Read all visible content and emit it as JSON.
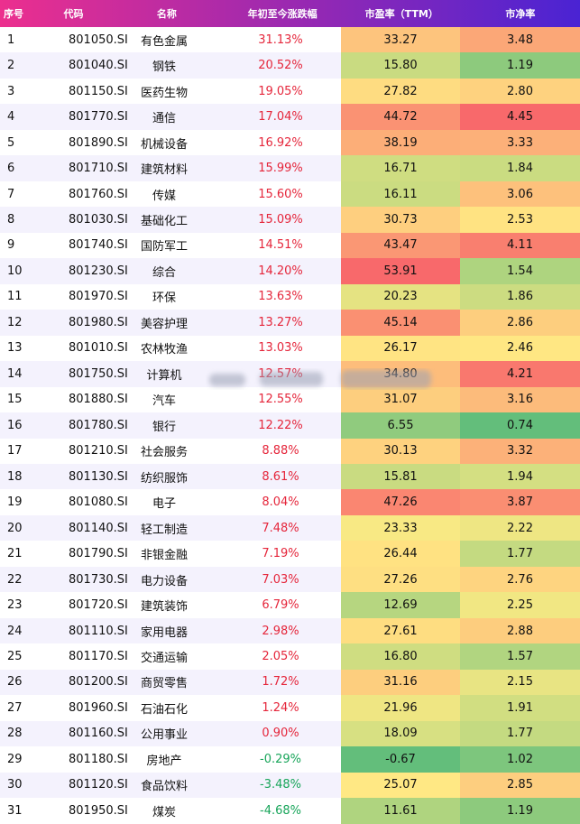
{
  "colors": {
    "header_start": "#ec2f8e",
    "header_end": "#4a23d3",
    "positive": "#e5263b",
    "negative": "#18a55a"
  },
  "headers": [
    "序号",
    "代码",
    "名称",
    "年初至今涨跌幅",
    "市盈率（TTM）",
    "市净率"
  ],
  "rows": [
    [
      "1",
      "801050.SI",
      "有色金属",
      "31.13%",
      "33.27",
      "3.48"
    ],
    [
      "2",
      "801040.SI",
      "钢铁",
      "20.52%",
      "15.80",
      "1.19"
    ],
    [
      "3",
      "801150.SI",
      "医药生物",
      "19.05%",
      "27.82",
      "2.80"
    ],
    [
      "4",
      "801770.SI",
      "通信",
      "17.04%",
      "44.72",
      "4.45"
    ],
    [
      "5",
      "801890.SI",
      "机械设备",
      "16.92%",
      "38.19",
      "3.33"
    ],
    [
      "6",
      "801710.SI",
      "建筑材料",
      "15.99%",
      "16.71",
      "1.84"
    ],
    [
      "7",
      "801760.SI",
      "传媒",
      "15.60%",
      "16.11",
      "3.06"
    ],
    [
      "8",
      "801030.SI",
      "基础化工",
      "15.09%",
      "30.73",
      "2.53"
    ],
    [
      "9",
      "801740.SI",
      "国防军工",
      "14.51%",
      "43.47",
      "4.11"
    ],
    [
      "10",
      "801230.SI",
      "综合",
      "14.20%",
      "53.91",
      "1.54"
    ],
    [
      "11",
      "801970.SI",
      "环保",
      "13.63%",
      "20.23",
      "1.86"
    ],
    [
      "12",
      "801980.SI",
      "美容护理",
      "13.27%",
      "45.14",
      "2.86"
    ],
    [
      "13",
      "801010.SI",
      "农林牧渔",
      "13.03%",
      "26.17",
      "2.46"
    ],
    [
      "14",
      "801750.SI",
      "计算机",
      "12.57%",
      "34.80",
      "4.21"
    ],
    [
      "15",
      "801880.SI",
      "汽车",
      "12.55%",
      "31.07",
      "3.16"
    ],
    [
      "16",
      "801780.SI",
      "银行",
      "12.22%",
      "6.55",
      "0.74"
    ],
    [
      "17",
      "801210.SI",
      "社会服务",
      "8.88%",
      "30.13",
      "3.32"
    ],
    [
      "18",
      "801130.SI",
      "纺织服饰",
      "8.61%",
      "15.81",
      "1.94"
    ],
    [
      "19",
      "801080.SI",
      "电子",
      "8.04%",
      "47.26",
      "3.87"
    ],
    [
      "20",
      "801140.SI",
      "轻工制造",
      "7.48%",
      "23.33",
      "2.22"
    ],
    [
      "21",
      "801790.SI",
      "非银金融",
      "7.19%",
      "26.44",
      "1.77"
    ],
    [
      "22",
      "801730.SI",
      "电力设备",
      "7.03%",
      "27.26",
      "2.76"
    ],
    [
      "23",
      "801720.SI",
      "建筑装饰",
      "6.79%",
      "12.69",
      "2.25"
    ],
    [
      "24",
      "801110.SI",
      "家用电器",
      "2.98%",
      "27.61",
      "2.88"
    ],
    [
      "25",
      "801170.SI",
      "交通运输",
      "2.05%",
      "16.80",
      "1.57"
    ],
    [
      "26",
      "801200.SI",
      "商贸零售",
      "1.72%",
      "31.16",
      "2.15"
    ],
    [
      "27",
      "801960.SI",
      "石油石化",
      "1.24%",
      "21.96",
      "1.91"
    ],
    [
      "28",
      "801160.SI",
      "公用事业",
      "0.90%",
      "18.09",
      "1.77"
    ],
    [
      "29",
      "801180.SI",
      "房地产",
      "-0.29%",
      "-0.67",
      "1.02"
    ],
    [
      "30",
      "801120.SI",
      "食品饮料",
      "-3.48%",
      "25.07",
      "2.85"
    ],
    [
      "31",
      "801950.SI",
      "煤炭",
      "-4.68%",
      "11.61",
      "1.19"
    ]
  ]
}
